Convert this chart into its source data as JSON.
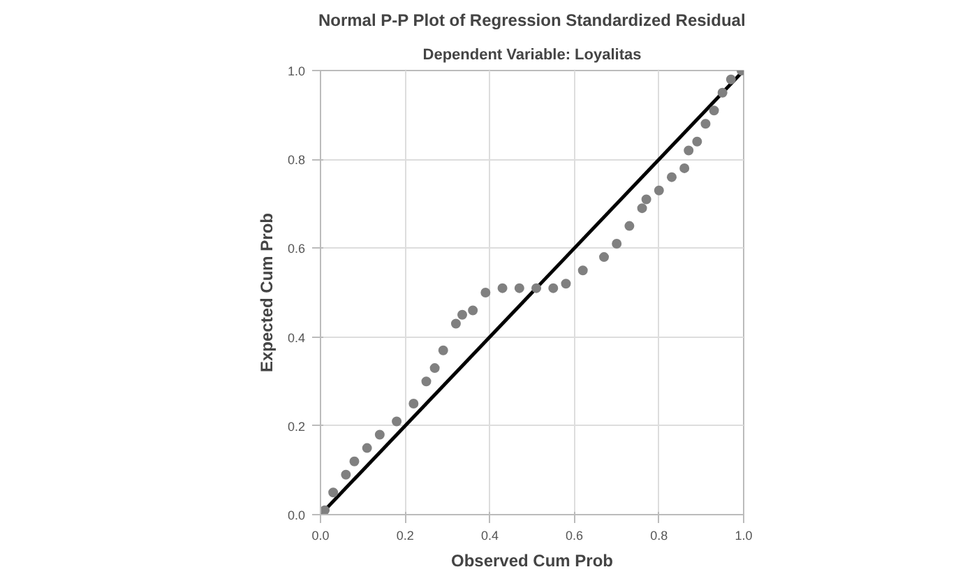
{
  "chart_data": {
    "type": "scatter",
    "title": "Normal P-P Plot of Regression Standardized Residual",
    "subtitle": "Dependent Variable: Loyalitas",
    "xlabel": "Observed Cum Prob",
    "ylabel": "Expected Cum Prob",
    "xlim": [
      0,
      1
    ],
    "ylim": [
      0,
      1
    ],
    "xticks": [
      {
        "value": 0,
        "label": "0.0"
      },
      {
        "value": 0.2,
        "label": "0.2"
      },
      {
        "value": 0.4,
        "label": "0.4"
      },
      {
        "value": 0.6,
        "label": "0.6"
      },
      {
        "value": 0.8,
        "label": "0.8"
      },
      {
        "value": 1,
        "label": "1.0"
      }
    ],
    "yticks": [
      {
        "value": 0,
        "label": "0.0"
      },
      {
        "value": 0.2,
        "label": "0.2"
      },
      {
        "value": 0.4,
        "label": "0.4"
      },
      {
        "value": 0.6,
        "label": "0.6"
      },
      {
        "value": 0.8,
        "label": "0.8"
      },
      {
        "value": 1,
        "label": "1.0"
      }
    ],
    "grid": true,
    "marker": "circle",
    "series": [
      {
        "color": "#808080",
        "x": [
          0.01,
          0.03,
          0.06,
          0.08,
          0.11,
          0.14,
          0.18,
          0.22,
          0.25,
          0.27,
          0.29,
          0.32,
          0.335,
          0.36,
          0.39,
          0.43,
          0.47,
          0.51,
          0.55,
          0.58,
          0.62,
          0.67,
          0.7,
          0.73,
          0.76,
          0.77,
          0.8,
          0.83,
          0.86,
          0.87,
          0.89,
          0.91,
          0.93,
          0.95,
          0.97,
          0.995
        ],
        "values": [
          0.01,
          0.05,
          0.09,
          0.12,
          0.15,
          0.18,
          0.21,
          0.25,
          0.3,
          0.33,
          0.37,
          0.43,
          0.45,
          0.46,
          0.5,
          0.51,
          0.51,
          0.51,
          0.51,
          0.52,
          0.55,
          0.58,
          0.61,
          0.65,
          0.69,
          0.71,
          0.73,
          0.76,
          0.78,
          0.82,
          0.84,
          0.88,
          0.91,
          0.95,
          0.98,
          1.0
        ]
      },
      {
        "type": "line",
        "marker": "none",
        "color": "#000000",
        "x": [
          0,
          1
        ],
        "values": [
          0,
          1
        ]
      }
    ]
  }
}
